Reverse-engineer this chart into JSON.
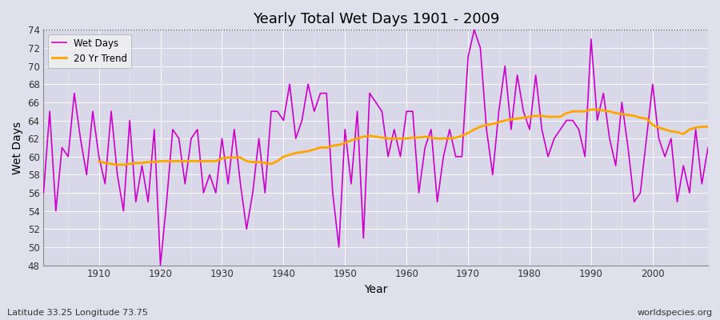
{
  "title": "Yearly Total Wet Days 1901 - 2009",
  "xlabel": "Year",
  "ylabel": "Wet Days",
  "footnote_left": "Latitude 33.25 Longitude 73.75",
  "footnote_right": "worldspecies.org",
  "wet_days_color": "#CC00CC",
  "trend_color": "#FFA500",
  "bg_color": "#E0E0EC",
  "plot_bg_color": "#D8D8E8",
  "ylim": [
    48,
    74
  ],
  "xlim": [
    1901,
    2009
  ],
  "yticks": [
    48,
    50,
    52,
    54,
    56,
    58,
    60,
    62,
    64,
    66,
    68,
    70,
    72,
    74
  ],
  "xticks": [
    1910,
    1920,
    1930,
    1940,
    1950,
    1960,
    1970,
    1980,
    1990,
    2000
  ],
  "legend_label_wet": "Wet Days",
  "legend_label_trend": "20 Yr Trend",
  "years": [
    1901,
    1902,
    1903,
    1904,
    1905,
    1906,
    1907,
    1908,
    1909,
    1910,
    1911,
    1912,
    1913,
    1914,
    1915,
    1916,
    1917,
    1918,
    1919,
    1920,
    1921,
    1922,
    1923,
    1924,
    1925,
    1926,
    1927,
    1928,
    1929,
    1930,
    1931,
    1932,
    1933,
    1934,
    1935,
    1936,
    1937,
    1938,
    1939,
    1940,
    1941,
    1942,
    1943,
    1944,
    1945,
    1946,
    1947,
    1948,
    1949,
    1950,
    1951,
    1952,
    1953,
    1954,
    1955,
    1956,
    1957,
    1958,
    1959,
    1960,
    1961,
    1962,
    1963,
    1964,
    1965,
    1966,
    1967,
    1968,
    1969,
    1970,
    1971,
    1972,
    1973,
    1974,
    1975,
    1976,
    1977,
    1978,
    1979,
    1980,
    1981,
    1982,
    1983,
    1984,
    1985,
    1986,
    1987,
    1988,
    1989,
    1990,
    1991,
    1992,
    1993,
    1994,
    1995,
    1996,
    1997,
    1998,
    1999,
    2000,
    2001,
    2002,
    2003,
    2004,
    2005,
    2006,
    2007,
    2008,
    2009
  ],
  "wet_days": [
    56,
    65,
    54,
    61,
    60,
    67,
    62,
    58,
    65,
    60,
    57,
    65,
    58,
    54,
    64,
    55,
    59,
    55,
    63,
    48,
    55,
    63,
    62,
    57,
    62,
    63,
    56,
    58,
    56,
    62,
    57,
    63,
    57,
    52,
    56,
    62,
    56,
    65,
    65,
    64,
    68,
    62,
    64,
    68,
    65,
    67,
    67,
    56,
    50,
    63,
    57,
    65,
    51,
    67,
    66,
    65,
    60,
    63,
    60,
    65,
    65,
    56,
    61,
    63,
    55,
    60,
    63,
    60,
    60,
    71,
    74,
    72,
    63,
    58,
    65,
    70,
    63,
    69,
    65,
    63,
    69,
    63,
    60,
    62,
    63,
    64,
    64,
    63,
    60,
    73,
    64,
    67,
    62,
    59,
    66,
    61,
    55,
    56,
    62,
    68,
    62,
    60,
    62,
    55,
    59,
    56,
    63,
    57,
    61
  ],
  "trend_years": [
    1910,
    1911,
    1912,
    1913,
    1914,
    1915,
    1916,
    1917,
    1918,
    1919,
    1920,
    1921,
    1922,
    1923,
    1924,
    1925,
    1926,
    1927,
    1928,
    1929,
    1930,
    1931,
    1932,
    1933,
    1934,
    1935,
    1936,
    1937,
    1938,
    1939,
    1940,
    1941,
    1942,
    1943,
    1944,
    1945,
    1946,
    1947,
    1948,
    1949,
    1950,
    1951,
    1952,
    1953,
    1954,
    1955,
    1956,
    1957,
    1958,
    1959,
    1960,
    1961,
    1962,
    1963,
    1964,
    1965,
    1966,
    1967,
    1968,
    1969,
    1970,
    1971,
    1972,
    1973,
    1974,
    1975,
    1976,
    1977,
    1978,
    1979,
    1980,
    1981,
    1982,
    1983,
    1984,
    1985,
    1986,
    1987,
    1988,
    1989,
    1990,
    1991,
    1992,
    1993,
    1994,
    1995,
    1996,
    1997,
    1998,
    1999,
    2000,
    2001,
    2002,
    2003,
    2004,
    2005,
    2006,
    2007,
    2008,
    2009
  ],
  "trend_values": [
    59.5,
    59.3,
    59.2,
    59.1,
    59.1,
    59.2,
    59.3,
    59.3,
    59.4,
    59.4,
    59.5,
    59.5,
    59.5,
    59.5,
    59.5,
    59.5,
    59.5,
    59.5,
    59.5,
    59.5,
    59.8,
    59.9,
    59.9,
    59.9,
    59.5,
    59.4,
    59.4,
    59.3,
    59.2,
    59.5,
    60.0,
    60.2,
    60.4,
    60.5,
    60.6,
    60.8,
    61.0,
    61.0,
    61.2,
    61.3,
    61.5,
    61.8,
    62.0,
    62.2,
    62.3,
    62.2,
    62.1,
    62.0,
    62.0,
    62.0,
    62.0,
    62.1,
    62.1,
    62.2,
    62.1,
    62.0,
    62.0,
    62.0,
    62.1,
    62.3,
    62.6,
    63.0,
    63.3,
    63.5,
    63.6,
    63.8,
    64.0,
    64.1,
    64.2,
    64.3,
    64.4,
    64.5,
    64.5,
    64.4,
    64.4,
    64.4,
    64.8,
    65.0,
    65.0,
    65.0,
    65.2,
    65.2,
    65.1,
    65.0,
    64.8,
    64.7,
    64.6,
    64.5,
    64.3,
    64.2,
    63.5,
    63.2,
    63.0,
    62.8,
    62.7,
    62.5,
    63.0,
    63.2,
    63.3,
    63.3
  ]
}
